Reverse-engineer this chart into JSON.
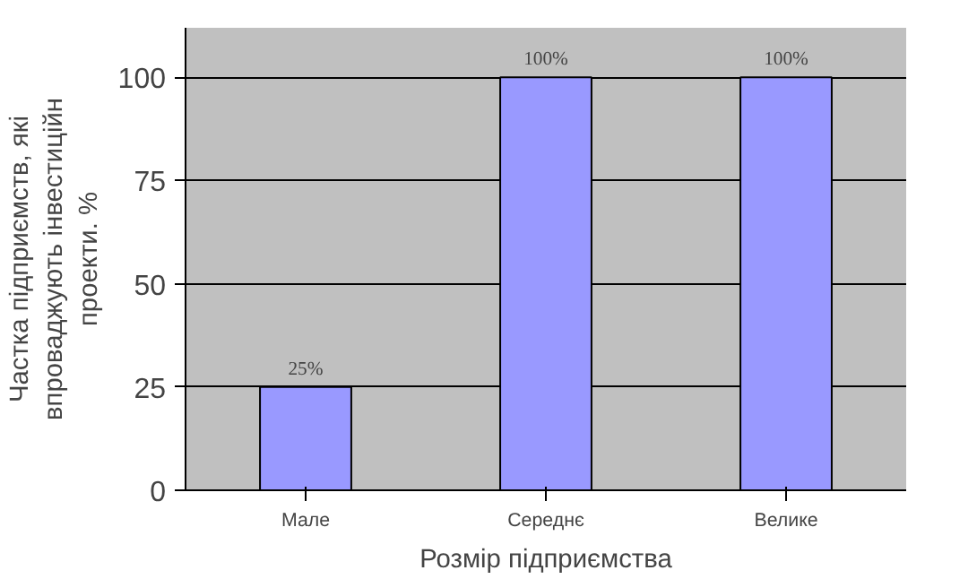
{
  "chart_data": {
    "type": "bar",
    "categories": [
      "Мале",
      "Середнє",
      "Велике"
    ],
    "values": [
      25,
      100,
      100
    ],
    "color": "#9999ff",
    "value_labels": [
      "25%",
      "100%",
      "100%"
    ],
    "xlabel": "Розмір підприємства",
    "ylabel": "Частка підприємств, які впроваджують інвестиційн проекти. %",
    "ylim": [
      0,
      100
    ],
    "yticks": [
      0,
      25,
      50,
      75,
      100
    ],
    "grid": "y"
  }
}
